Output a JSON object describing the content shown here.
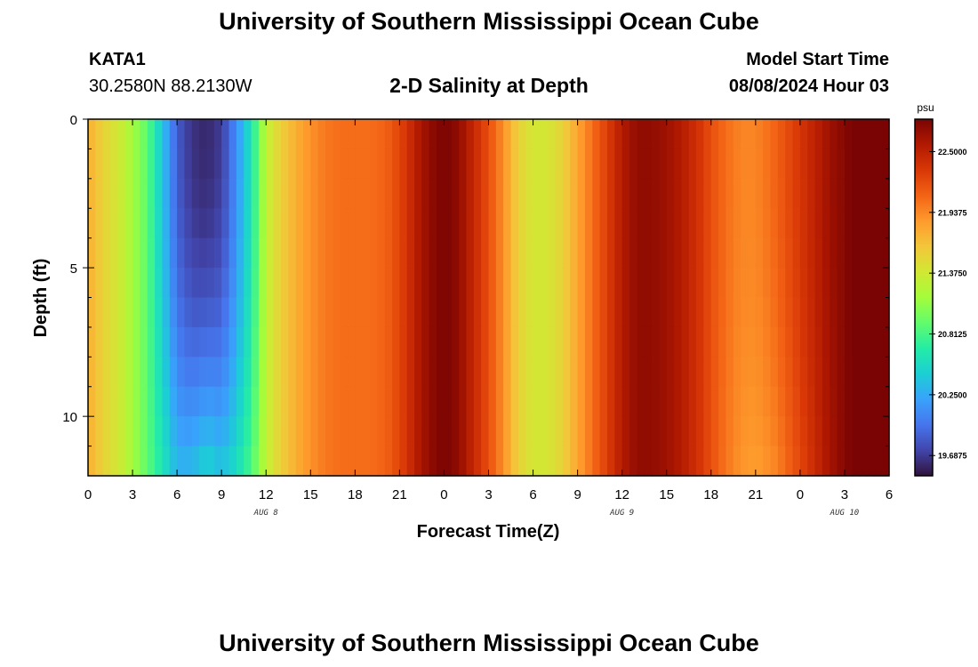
{
  "header": {
    "title": "University of Southern Mississippi Ocean Cube",
    "station_id": "KATA1",
    "station_location": "30.2580N  88.2130W",
    "chart_title": "2-D Salinity at Depth",
    "model_start_label": "Model Start Time",
    "model_start_value": "08/08/2024 Hour 03"
  },
  "footer": {
    "title": "University of Southern Mississippi Ocean Cube"
  },
  "chart_data": {
    "type": "heatmap",
    "title": "2-D Salinity at Depth",
    "xlabel": "Forecast Time(Z)",
    "ylabel": "Depth (ft)",
    "x_tick_labels": [
      "0",
      "3",
      "6",
      "9",
      "12",
      "15",
      "18",
      "21",
      "0",
      "3",
      "6",
      "9",
      "12",
      "15",
      "18",
      "21",
      "0",
      "3",
      "6"
    ],
    "x_hours": [
      0,
      54
    ],
    "date_labels": [
      "AUG 8",
      "AUG 9",
      "AUG 10"
    ],
    "y_tick_labels": [
      "0",
      "5",
      "10"
    ],
    "ylim": [
      0,
      12
    ],
    "colorbar": {
      "unit": "psu",
      "tick_labels": [
        "22.5000",
        "21.9375",
        "21.3750",
        "20.8125",
        "20.2500",
        "19.6875"
      ],
      "tick_values": [
        22.5,
        21.9375,
        21.375,
        20.8125,
        20.25,
        19.6875
      ],
      "vmin": 19.5,
      "vmax": 22.8,
      "colors": [
        "#30123b",
        "#4145ab",
        "#4675ed",
        "#39a2fc",
        "#1bcfd4",
        "#24eca6",
        "#61fc6c",
        "#a4fc3b",
        "#d1e834",
        "#f3c63a",
        "#fe9b2d",
        "#f36315",
        "#d93806",
        "#b11901",
        "#7a0403"
      ]
    },
    "depth_levels_ft": [
      0,
      1,
      2,
      3,
      4,
      5,
      6,
      7,
      8,
      9,
      10,
      11
    ],
    "surface_salinity_by_hour": [
      {
        "hour": 0,
        "psu": 21.75
      },
      {
        "hour": 1,
        "psu": 21.55
      },
      {
        "hour": 2,
        "psu": 21.4
      },
      {
        "hour": 3,
        "psu": 21.15
      },
      {
        "hour": 4,
        "psu": 20.9
      },
      {
        "hour": 5,
        "psu": 20.4
      },
      {
        "hour": 6,
        "psu": 19.85
      },
      {
        "hour": 7,
        "psu": 19.65
      },
      {
        "hour": 8,
        "psu": 19.6
      },
      {
        "hour": 9,
        "psu": 19.7
      },
      {
        "hour": 10,
        "psu": 20.1
      },
      {
        "hour": 11,
        "psu": 20.6
      },
      {
        "hour": 12,
        "psu": 21.3
      },
      {
        "hour": 13,
        "psu": 21.55
      },
      {
        "hour": 14,
        "psu": 21.75
      },
      {
        "hour": 15,
        "psu": 21.9
      },
      {
        "hour": 16,
        "psu": 22.0
      },
      {
        "hour": 17,
        "psu": 22.05
      },
      {
        "hour": 18,
        "psu": 22.05
      },
      {
        "hour": 19,
        "psu": 22.05
      },
      {
        "hour": 20,
        "psu": 22.1
      },
      {
        "hour": 21,
        "psu": 22.25
      },
      {
        "hour": 22,
        "psu": 22.5
      },
      {
        "hour": 23,
        "psu": 22.7
      },
      {
        "hour": 24,
        "psu": 22.8
      },
      {
        "hour": 25,
        "psu": 22.7
      },
      {
        "hour": 26,
        "psu": 22.45
      },
      {
        "hour": 27,
        "psu": 22.2
      },
      {
        "hour": 28,
        "psu": 21.9
      },
      {
        "hour": 29,
        "psu": 21.55
      },
      {
        "hour": 30,
        "psu": 21.4
      },
      {
        "hour": 31,
        "psu": 21.4
      },
      {
        "hour": 32,
        "psu": 21.55
      },
      {
        "hour": 33,
        "psu": 21.8
      },
      {
        "hour": 34,
        "psu": 22.05
      },
      {
        "hour": 35,
        "psu": 22.3
      },
      {
        "hour": 36,
        "psu": 22.55
      },
      {
        "hour": 37,
        "psu": 22.7
      },
      {
        "hour": 38,
        "psu": 22.7
      },
      {
        "hour": 39,
        "psu": 22.65
      },
      {
        "hour": 40,
        "psu": 22.55
      },
      {
        "hour": 41,
        "psu": 22.4
      },
      {
        "hour": 42,
        "psu": 22.2
      },
      {
        "hour": 43,
        "psu": 22.05
      },
      {
        "hour": 44,
        "psu": 21.95
      },
      {
        "hour": 45,
        "psu": 21.95
      },
      {
        "hour": 46,
        "psu": 22.05
      },
      {
        "hour": 47,
        "psu": 22.2
      },
      {
        "hour": 48,
        "psu": 22.35
      },
      {
        "hour": 49,
        "psu": 22.5
      },
      {
        "hour": 50,
        "psu": 22.65
      },
      {
        "hour": 51,
        "psu": 22.75
      },
      {
        "hour": 52,
        "psu": 22.85
      },
      {
        "hour": 53,
        "psu": 22.95
      },
      {
        "hour": 54,
        "psu": 23.1
      }
    ],
    "deep_adjustment": [
      {
        "hour_from": 4,
        "hour_to": 12,
        "psu_change_at_bottom": 0.85
      },
      {
        "hour_from": 42,
        "hour_to": 51,
        "psu_change_at_bottom": -0.15
      }
    ]
  }
}
